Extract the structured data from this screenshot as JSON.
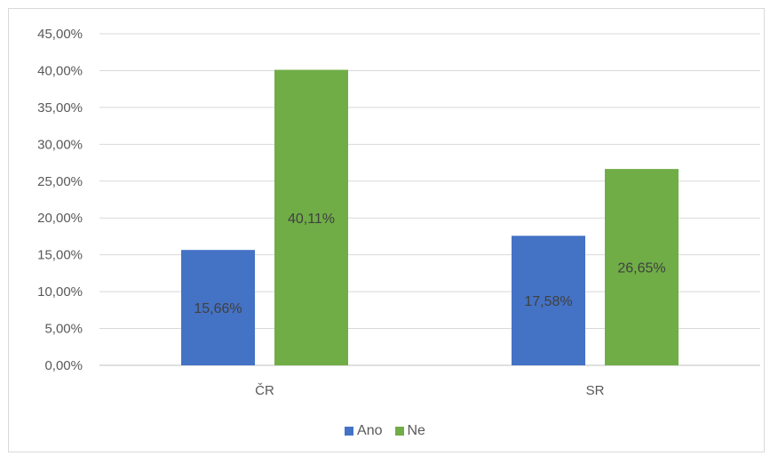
{
  "chart_data": {
    "type": "bar",
    "categories": [
      "ČR",
      "SR"
    ],
    "series": [
      {
        "name": "Ano",
        "values": [
          15.66,
          17.58
        ],
        "labels": [
          "15,66%",
          "17,58%"
        ],
        "color": "#4472c4"
      },
      {
        "name": "Ne",
        "values": [
          40.11,
          26.65
        ],
        "labels": [
          "40,11%",
          "26,65%"
        ],
        "color": "#70ad47"
      }
    ],
    "ylim": [
      0,
      45
    ],
    "yticks": [
      "0,00%",
      "5,00%",
      "10,00%",
      "15,00%",
      "20,00%",
      "25,00%",
      "30,00%",
      "35,00%",
      "40,00%",
      "45,00%"
    ],
    "grid": true,
    "legend_position": "bottom",
    "title": "",
    "xlabel": "",
    "ylabel": ""
  }
}
